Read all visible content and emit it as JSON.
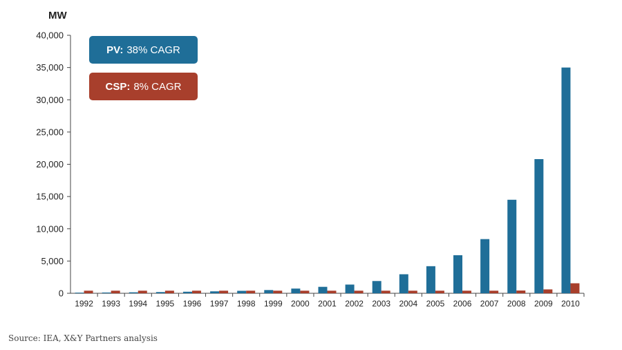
{
  "chart_data": {
    "type": "bar",
    "ylabel": "MW",
    "ylim": [
      0,
      40000
    ],
    "yticks": [
      "0",
      "5,000",
      "10,000",
      "15,000",
      "20,000",
      "25,000",
      "30,000",
      "35,000",
      "40,000"
    ],
    "ytick_values": [
      0,
      5000,
      10000,
      15000,
      20000,
      25000,
      30000,
      35000,
      40000
    ],
    "categories": [
      "1992",
      "1993",
      "1994",
      "1995",
      "1996",
      "1997",
      "1998",
      "1999",
      "2000",
      "2001",
      "2002",
      "2003",
      "2004",
      "2005",
      "2006",
      "2007",
      "2008",
      "2009",
      "2010"
    ],
    "series": [
      {
        "name": "PV",
        "color": "#1f6e98",
        "values": [
          100,
          120,
          150,
          190,
          240,
          300,
          380,
          500,
          730,
          1000,
          1350,
          1900,
          2950,
          4200,
          5900,
          8400,
          14500,
          20800,
          35000
        ]
      },
      {
        "name": "CSP",
        "color": "#a83f2c",
        "values": [
          400,
          400,
          400,
          400,
          400,
          400,
          400,
          400,
          400,
          400,
          400,
          400,
          400,
          400,
          400,
          400,
          430,
          600,
          1550
        ]
      }
    ],
    "legend": [
      {
        "bold": "PV:",
        "text": "38% CAGR",
        "color": "#1f6e98"
      },
      {
        "bold": "CSP:",
        "text": "8% CAGR",
        "color": "#a83f2c"
      }
    ],
    "legend_placement": "top-left",
    "grid": false
  },
  "source": "Source: IEA, X&Y Partners analysis"
}
